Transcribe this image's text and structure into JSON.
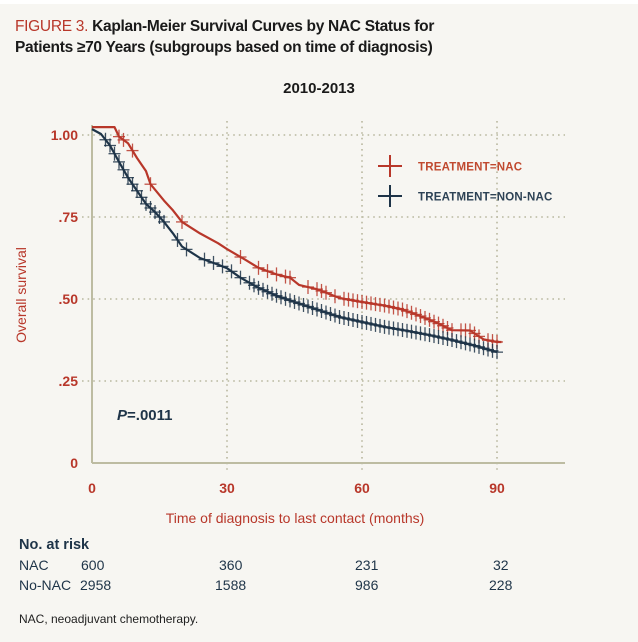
{
  "figure": {
    "label": "FIGURE 3.",
    "title_line1": "Kaplan-Meier Survival Curves by NAC Status for",
    "title_line2": "Patients ≥70 Years (subgroups based on time of diagnosis)"
  },
  "chart_data": {
    "type": "line",
    "title": "2010-2013",
    "xlabel": "Time of diagnosis to last contact (months)",
    "ylabel": "Overall survival",
    "xlim": [
      0,
      105
    ],
    "ylim": [
      0,
      1.0
    ],
    "x_ticks": [
      0,
      30,
      60,
      90
    ],
    "x_tick_labels": [
      "0",
      "30",
      "60",
      "90"
    ],
    "y_ticks": [
      0,
      0.25,
      0.5,
      0.75,
      1.0
    ],
    "y_tick_labels": [
      "0",
      ".25",
      ".50",
      ".75",
      "1.00"
    ],
    "grid": true,
    "legend_position": "top-right",
    "annotation": {
      "p_label": "P",
      "p_value": "=.0011"
    },
    "series": [
      {
        "name": "TREATMENT=NAC",
        "color": "#b8372a",
        "marker": "plus",
        "points": [
          [
            0,
            1.024
          ],
          [
            5,
            1.024
          ],
          [
            6,
            0.995
          ],
          [
            8,
            0.975
          ],
          [
            10,
            0.93
          ],
          [
            12,
            0.89
          ],
          [
            13,
            0.85
          ],
          [
            16,
            0.8
          ],
          [
            18,
            0.77
          ],
          [
            20,
            0.735
          ],
          [
            24,
            0.7
          ],
          [
            28,
            0.67
          ],
          [
            30,
            0.652
          ],
          [
            34,
            0.62
          ],
          [
            37,
            0.595
          ],
          [
            41,
            0.575
          ],
          [
            44,
            0.565
          ],
          [
            46,
            0.543
          ],
          [
            50,
            0.53
          ],
          [
            55,
            0.503
          ],
          [
            60,
            0.491
          ],
          [
            65,
            0.48
          ],
          [
            69,
            0.468
          ],
          [
            73,
            0.448
          ],
          [
            77,
            0.425
          ],
          [
            80,
            0.405
          ],
          [
            84,
            0.404
          ],
          [
            87,
            0.377
          ],
          [
            90,
            0.369
          ],
          [
            91,
            0.369
          ]
        ],
        "censor_marks": [
          6,
          7,
          9,
          13,
          20,
          33,
          37,
          39,
          41,
          43,
          44,
          48,
          50,
          51,
          52,
          54,
          56,
          57,
          58,
          59,
          60,
          61,
          62,
          63,
          64,
          65,
          66,
          67,
          68,
          69,
          70,
          71,
          72,
          73,
          74,
          75,
          76,
          77,
          78,
          79,
          80,
          82,
          83,
          84,
          85,
          86,
          88,
          89,
          90
        ]
      },
      {
        "name": "TREATMENT=NON-NAC",
        "color": "#1e3448",
        "marker": "plus",
        "points": [
          [
            0,
            1.018
          ],
          [
            2,
            1.003
          ],
          [
            4,
            0.968
          ],
          [
            6,
            0.918
          ],
          [
            8,
            0.87
          ],
          [
            10,
            0.83
          ],
          [
            12,
            0.79
          ],
          [
            14,
            0.765
          ],
          [
            16,
            0.735
          ],
          [
            18,
            0.7
          ],
          [
            20,
            0.66
          ],
          [
            24,
            0.625
          ],
          [
            28,
            0.605
          ],
          [
            30,
            0.594
          ],
          [
            33,
            0.565
          ],
          [
            37,
            0.534
          ],
          [
            41,
            0.51
          ],
          [
            45,
            0.491
          ],
          [
            50,
            0.468
          ],
          [
            55,
            0.445
          ],
          [
            60,
            0.43
          ],
          [
            65,
            0.415
          ],
          [
            70,
            0.403
          ],
          [
            75,
            0.39
          ],
          [
            80,
            0.375
          ],
          [
            85,
            0.358
          ],
          [
            90,
            0.338
          ]
        ],
        "censor_marks": [
          3,
          4,
          5,
          6,
          7,
          8,
          9,
          10,
          11,
          12,
          13,
          14,
          15,
          16,
          19,
          21,
          25,
          27,
          29,
          31,
          33,
          35,
          36,
          37,
          38,
          39,
          40,
          41,
          42,
          43,
          44,
          45,
          46,
          47,
          48,
          49,
          50,
          51,
          52,
          53,
          54,
          55,
          56,
          57,
          58,
          59,
          60,
          61,
          62,
          63,
          64,
          65,
          66,
          67,
          68,
          69,
          70,
          71,
          72,
          73,
          74,
          75,
          76,
          77,
          78,
          79,
          80,
          81,
          82,
          83,
          84,
          85,
          86,
          87,
          88,
          89,
          90
        ]
      }
    ]
  },
  "at_risk": {
    "title": "No. at risk",
    "timepoints": [
      0,
      30,
      60,
      90
    ],
    "rows": [
      {
        "label": "NAC",
        "values": [
          "600",
          "360",
          "231",
          "32"
        ]
      },
      {
        "label": "No-NAC",
        "values": [
          "2958",
          "1588",
          "986",
          "228"
        ]
      }
    ]
  },
  "footnote": "NAC, neoadjuvant chemotherapy."
}
